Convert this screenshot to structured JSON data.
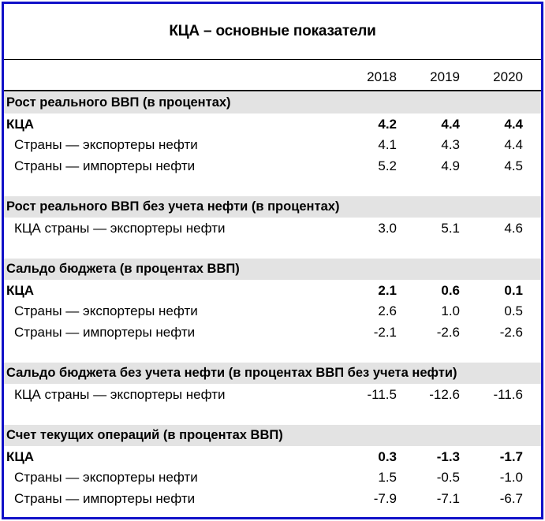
{
  "title": "КЦА – основные показатели",
  "years": [
    "2018",
    "2019",
    "2020"
  ],
  "sections": [
    {
      "heading": "Рост реального ВВП (в процентах)",
      "rows": [
        {
          "label": "КЦА",
          "bold": true,
          "values": [
            "4.2",
            "4.4",
            "4.4"
          ]
        },
        {
          "label": "Страны — экспортеры нефти",
          "bold": false,
          "values": [
            "4.1",
            "4.3",
            "4.4"
          ]
        },
        {
          "label": "Страны — импортеры нефти",
          "bold": false,
          "values": [
            "5.2",
            "4.9",
            "4.5"
          ]
        }
      ]
    },
    {
      "heading": "Рост реального ВВП без учета нефти (в процентах)",
      "rows": [
        {
          "label": "КЦА страны — экспортеры нефти",
          "bold": false,
          "values": [
            "3.0",
            "5.1",
            "4.6"
          ]
        }
      ]
    },
    {
      "heading": "Сальдо бюджета (в процентах ВВП)",
      "rows": [
        {
          "label": "КЦА",
          "bold": true,
          "values": [
            "2.1",
            "0.6",
            "0.1"
          ]
        },
        {
          "label": "Страны — экспортеры нефти",
          "bold": false,
          "values": [
            "2.6",
            "1.0",
            "0.5"
          ]
        },
        {
          "label": "Страны — импортеры нефти",
          "bold": false,
          "values": [
            "-2.1",
            "-2.6",
            "-2.6"
          ]
        }
      ]
    },
    {
      "heading": "Сальдо бюджета без учета нефти (в процентах ВВП без учета нефти)",
      "rows": [
        {
          "label": "КЦА страны — экспортеры нефти",
          "bold": false,
          "values": [
            "-11.5",
            "-12.6",
            "-11.6"
          ]
        }
      ]
    },
    {
      "heading": "Счет текущих операций (в процентах ВВП)",
      "rows": [
        {
          "label": "КЦА",
          "bold": true,
          "values": [
            "0.3",
            "-1.3",
            "-1.7"
          ]
        },
        {
          "label": "Страны — экспортеры нефти",
          "bold": false,
          "values": [
            "1.5",
            "-0.5",
            "-1.0"
          ]
        },
        {
          "label": "Страны — импортеры нефти",
          "bold": false,
          "values": [
            "-7.9",
            "-7.1",
            "-6.7"
          ]
        }
      ]
    }
  ],
  "colors": {
    "frame_border": "#1010c8",
    "section_bg": "#e3e3e3"
  }
}
